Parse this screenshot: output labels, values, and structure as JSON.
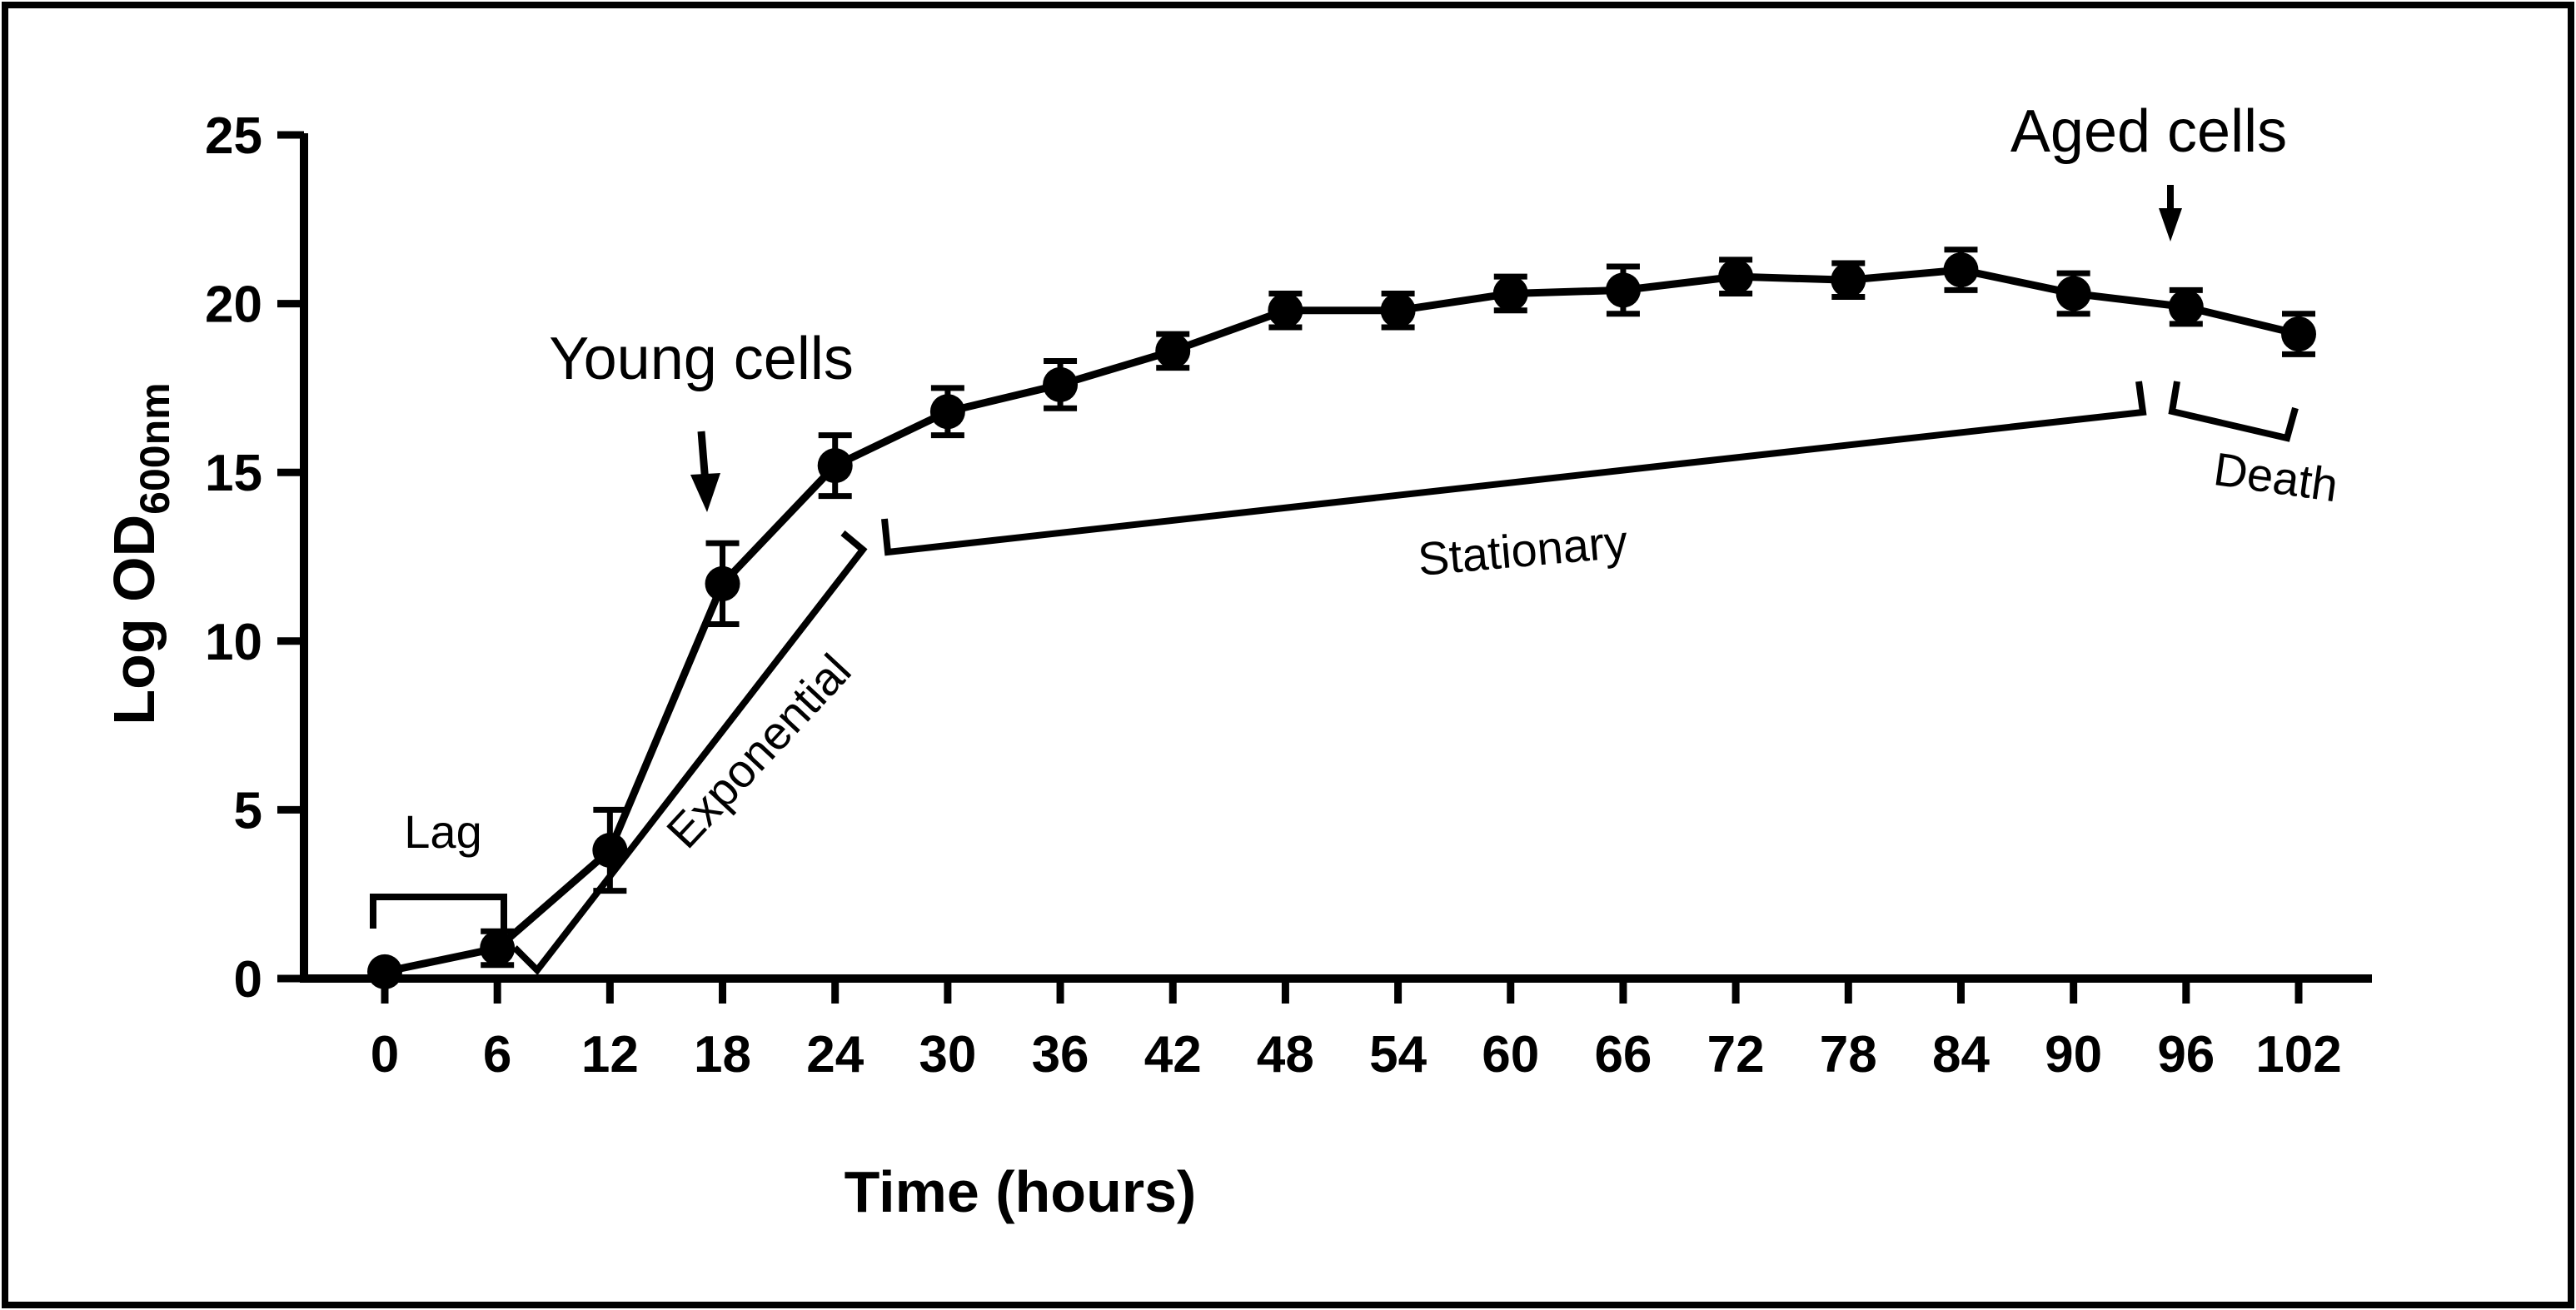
{
  "chart_data": {
    "type": "line",
    "title": "",
    "xlabel": "Time (hours)",
    "ylabel_main": "Log OD",
    "ylabel_sub": "600nm",
    "xlim": [
      -2,
      104
    ],
    "ylim": [
      0,
      25
    ],
    "x_ticks": [
      "0",
      "6",
      "12",
      "18",
      "24",
      "30",
      "36",
      "42",
      "48",
      "54",
      "60",
      "66",
      "72",
      "78",
      "84",
      "90",
      "96",
      "102"
    ],
    "y_ticks": [
      "0",
      "5",
      "10",
      "15",
      "20",
      "25"
    ],
    "grid": false,
    "legend": "none",
    "series": [
      {
        "name": "Log OD600nm",
        "x": [
          0,
          6,
          12,
          18,
          24,
          30,
          36,
          42,
          48,
          54,
          60,
          66,
          72,
          78,
          84,
          90,
          96,
          102
        ],
        "y": [
          0.2,
          0.9,
          3.8,
          11.7,
          15.2,
          16.8,
          17.6,
          18.6,
          19.8,
          19.8,
          20.3,
          20.4,
          20.8,
          20.7,
          21.0,
          20.3,
          19.9,
          19.1
        ],
        "err": [
          0.0,
          0.5,
          1.2,
          1.2,
          0.9,
          0.7,
          0.7,
          0.5,
          0.5,
          0.5,
          0.5,
          0.7,
          0.5,
          0.5,
          0.6,
          0.6,
          0.5,
          0.6
        ]
      }
    ],
    "annotations": {
      "young": "Young cells",
      "aged": "Aged cells",
      "lag": "Lag",
      "exponential": "Exponential",
      "stationary": "Stationary",
      "death": "Death"
    },
    "colors": {
      "line": "#000000",
      "background": "#ffffff"
    }
  }
}
